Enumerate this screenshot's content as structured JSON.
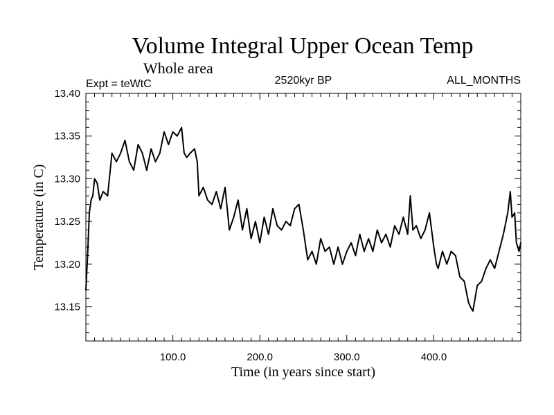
{
  "chart_data": {
    "type": "line",
    "title": "Volume Integral Upper Ocean Temp",
    "subtitle": "Whole area",
    "expt_label": "Expt = teWtC",
    "center_label": "2520kyr BP",
    "right_label": "ALL_MONTHS",
    "xlabel": "Time (in years since start)",
    "ylabel": "Temperature (in C)",
    "xlim": [
      0,
      500
    ],
    "ylim": [
      13.11,
      13.4
    ],
    "xticks": [
      100,
      200,
      300,
      400
    ],
    "xtick_labels": [
      "100.0",
      "200.0",
      "300.0",
      "400.0"
    ],
    "yticks": [
      13.15,
      13.2,
      13.25,
      13.3,
      13.35,
      13.4
    ],
    "ytick_labels": [
      "13.15",
      "13.20",
      "13.25",
      "13.30",
      "13.35",
      "13.40"
    ],
    "grid": false,
    "series": [
      {
        "name": "Volume integral upper ocean temperature",
        "x": [
          0,
          2,
          4,
          6,
          8,
          10,
          13,
          16,
          20,
          25,
          30,
          35,
          40,
          45,
          50,
          55,
          60,
          65,
          70,
          75,
          80,
          85,
          90,
          95,
          100,
          105,
          110,
          113,
          116,
          120,
          125,
          128,
          130,
          135,
          140,
          145,
          150,
          155,
          160,
          165,
          170,
          175,
          180,
          185,
          190,
          195,
          200,
          205,
          210,
          215,
          220,
          225,
          230,
          235,
          240,
          245,
          250,
          255,
          260,
          265,
          270,
          275,
          280,
          285,
          290,
          295,
          300,
          305,
          310,
          315,
          320,
          325,
          330,
          335,
          340,
          345,
          350,
          355,
          360,
          365,
          370,
          373,
          376,
          380,
          385,
          390,
          395,
          400,
          403,
          405,
          410,
          415,
          420,
          425,
          430,
          435,
          440,
          442,
          445,
          450,
          455,
          460,
          465,
          470,
          475,
          480,
          485,
          488,
          490,
          493,
          495,
          498,
          500
        ],
        "y": [
          13.17,
          13.21,
          13.26,
          13.275,
          13.28,
          13.3,
          13.295,
          13.275,
          13.285,
          13.28,
          13.33,
          13.32,
          13.33,
          13.345,
          13.32,
          13.31,
          13.34,
          13.33,
          13.31,
          13.335,
          13.32,
          13.33,
          13.355,
          13.34,
          13.355,
          13.35,
          13.36,
          13.33,
          13.325,
          13.33,
          13.335,
          13.32,
          13.28,
          13.29,
          13.275,
          13.27,
          13.285,
          13.265,
          13.29,
          13.24,
          13.255,
          13.275,
          13.24,
          13.265,
          13.23,
          13.25,
          13.225,
          13.255,
          13.235,
          13.265,
          13.245,
          13.24,
          13.25,
          13.245,
          13.265,
          13.27,
          13.24,
          13.205,
          13.215,
          13.2,
          13.23,
          13.215,
          13.22,
          13.2,
          13.22,
          13.2,
          13.215,
          13.225,
          13.21,
          13.235,
          13.215,
          13.23,
          13.215,
          13.24,
          13.225,
          13.235,
          13.22,
          13.245,
          13.235,
          13.255,
          13.235,
          13.28,
          13.24,
          13.245,
          13.23,
          13.24,
          13.26,
          13.22,
          13.2,
          13.195,
          13.215,
          13.2,
          13.215,
          13.21,
          13.185,
          13.18,
          13.155,
          13.15,
          13.145,
          13.175,
          13.18,
          13.195,
          13.205,
          13.195,
          13.215,
          13.235,
          13.26,
          13.285,
          13.255,
          13.26,
          13.225,
          13.215,
          13.225
        ]
      }
    ]
  }
}
